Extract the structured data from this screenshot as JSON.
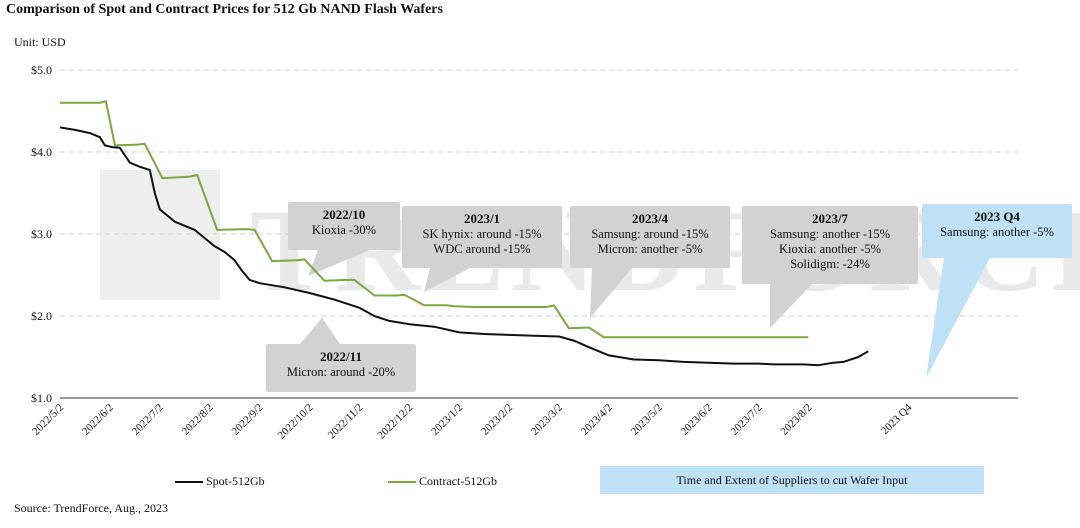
{
  "chart_data": {
    "type": "line",
    "title": "Comparison of Spot and Contract Prices for 512 Gb NAND Flash Wafers",
    "unit_label": "Unit: USD",
    "source": "Source: TrendForce, Aug., 2023",
    "watermark": "TRENDFORCE",
    "ylim": [
      1.0,
      5.0
    ],
    "yticks": [
      "$1.0",
      "$2.0",
      "$3.0",
      "$4.0",
      "$5.0"
    ],
    "ytick_values": [
      1.0,
      2.0,
      3.0,
      4.0,
      5.0
    ],
    "xlim": [
      0,
      19.2
    ],
    "xticks": [
      {
        "label": "2022/5/2",
        "x": 0
      },
      {
        "label": "2022/6/2",
        "x": 1
      },
      {
        "label": "2022/7/2",
        "x": 2
      },
      {
        "label": "2022/8/2",
        "x": 3
      },
      {
        "label": "2022/9/2",
        "x": 4
      },
      {
        "label": "2022/10/2",
        "x": 5
      },
      {
        "label": "2022/11/2",
        "x": 6
      },
      {
        "label": "2022/12/2",
        "x": 7
      },
      {
        "label": "2023/1/2",
        "x": 8
      },
      {
        "label": "2023/2/2",
        "x": 9
      },
      {
        "label": "2023/3/2",
        "x": 10
      },
      {
        "label": "2023/4/2",
        "x": 11
      },
      {
        "label": "2023/5/2",
        "x": 12
      },
      {
        "label": "2023/6/2",
        "x": 13
      },
      {
        "label": "2023/7/2",
        "x": 14
      },
      {
        "label": "2023/8/2",
        "x": 15
      },
      {
        "label": "2023 Q4",
        "x": 17
      }
    ],
    "series": [
      {
        "name": "Spot-512Gb",
        "color": "#111111",
        "x": [
          0,
          0.3,
          0.6,
          0.8,
          0.9,
          1.05,
          1.2,
          1.4,
          1.6,
          1.8,
          1.9,
          2.0,
          2.1,
          2.3,
          2.5,
          2.7,
          2.9,
          3.1,
          3.3,
          3.5,
          3.65,
          3.8,
          4.0,
          4.5,
          5.0,
          5.5,
          6.0,
          6.3,
          6.6,
          7.0,
          7.5,
          8.0,
          8.5,
          9.0,
          9.5,
          10.0,
          10.3,
          10.6,
          11.0,
          11.5,
          12.0,
          12.5,
          13.0,
          13.5,
          14.0,
          14.3,
          14.6,
          14.9,
          15.2,
          15.5,
          15.7,
          16.0,
          16.2
        ],
        "values": [
          4.3,
          4.27,
          4.23,
          4.18,
          4.08,
          4.06,
          4.05,
          3.87,
          3.82,
          3.78,
          3.5,
          3.3,
          3.25,
          3.15,
          3.1,
          3.05,
          2.95,
          2.85,
          2.78,
          2.68,
          2.55,
          2.44,
          2.4,
          2.35,
          2.28,
          2.2,
          2.1,
          2.0,
          1.94,
          1.9,
          1.87,
          1.8,
          1.78,
          1.77,
          1.76,
          1.75,
          1.7,
          1.62,
          1.52,
          1.47,
          1.46,
          1.44,
          1.43,
          1.42,
          1.42,
          1.41,
          1.41,
          1.41,
          1.4,
          1.43,
          1.44,
          1.5,
          1.57
        ]
      },
      {
        "name": "Contract-512Gb",
        "color": "#7aa83c",
        "x": [
          0,
          0.8,
          0.92,
          1.1,
          1.55,
          1.7,
          2.05,
          2.6,
          2.75,
          3.15,
          3.75,
          3.9,
          4.25,
          4.75,
          4.9,
          5.3,
          5.75,
          5.9,
          6.3,
          6.75,
          6.9,
          7.3,
          7.75,
          7.9,
          8.3,
          9.2,
          9.75,
          9.9,
          10.2,
          10.6,
          10.9,
          15.0
        ],
        "values": [
          4.6,
          4.6,
          4.62,
          4.08,
          4.09,
          4.1,
          3.68,
          3.7,
          3.72,
          3.05,
          3.06,
          3.05,
          2.67,
          2.68,
          2.69,
          2.43,
          2.44,
          2.44,
          2.25,
          2.25,
          2.26,
          2.13,
          2.13,
          2.12,
          2.11,
          2.11,
          2.11,
          2.13,
          1.85,
          1.86,
          1.74,
          1.74
        ]
      }
    ],
    "annotations": [
      {
        "id": "2022-10",
        "title": "2022/10",
        "lines": [
          "Kioxia -30%"
        ]
      },
      {
        "id": "2023-1",
        "title": "2023/1",
        "lines": [
          "SK hynix: around -15%",
          "WDC around -15%"
        ]
      },
      {
        "id": "2023-4",
        "title": "2023/4",
        "lines": [
          "Samsung: around -15%",
          "Micron: another -5%"
        ]
      },
      {
        "id": "2023-7",
        "title": "2023/7",
        "lines": [
          "Samsung: another -15%",
          "Kioxia: another -5%",
          "Solidigm: -24%"
        ]
      },
      {
        "id": "2022-11",
        "title": "2022/11",
        "lines": [
          "Micron: around -20%"
        ]
      },
      {
        "id": "2023-q4",
        "title": "2023 Q4",
        "lines": [
          "Samsung: another -5%"
        ]
      }
    ],
    "legend": {
      "spot": "Spot-512Gb",
      "contract": "Contract-512Gb",
      "info_box": "Time and Extent of Suppliers to cut Wafer Input"
    },
    "colors": {
      "spot": "#111111",
      "contract": "#7aa83c",
      "callout_gray": "#d2d2d2",
      "callout_blue": "#bfe1f6",
      "gridline": "#cfcfcf"
    }
  }
}
